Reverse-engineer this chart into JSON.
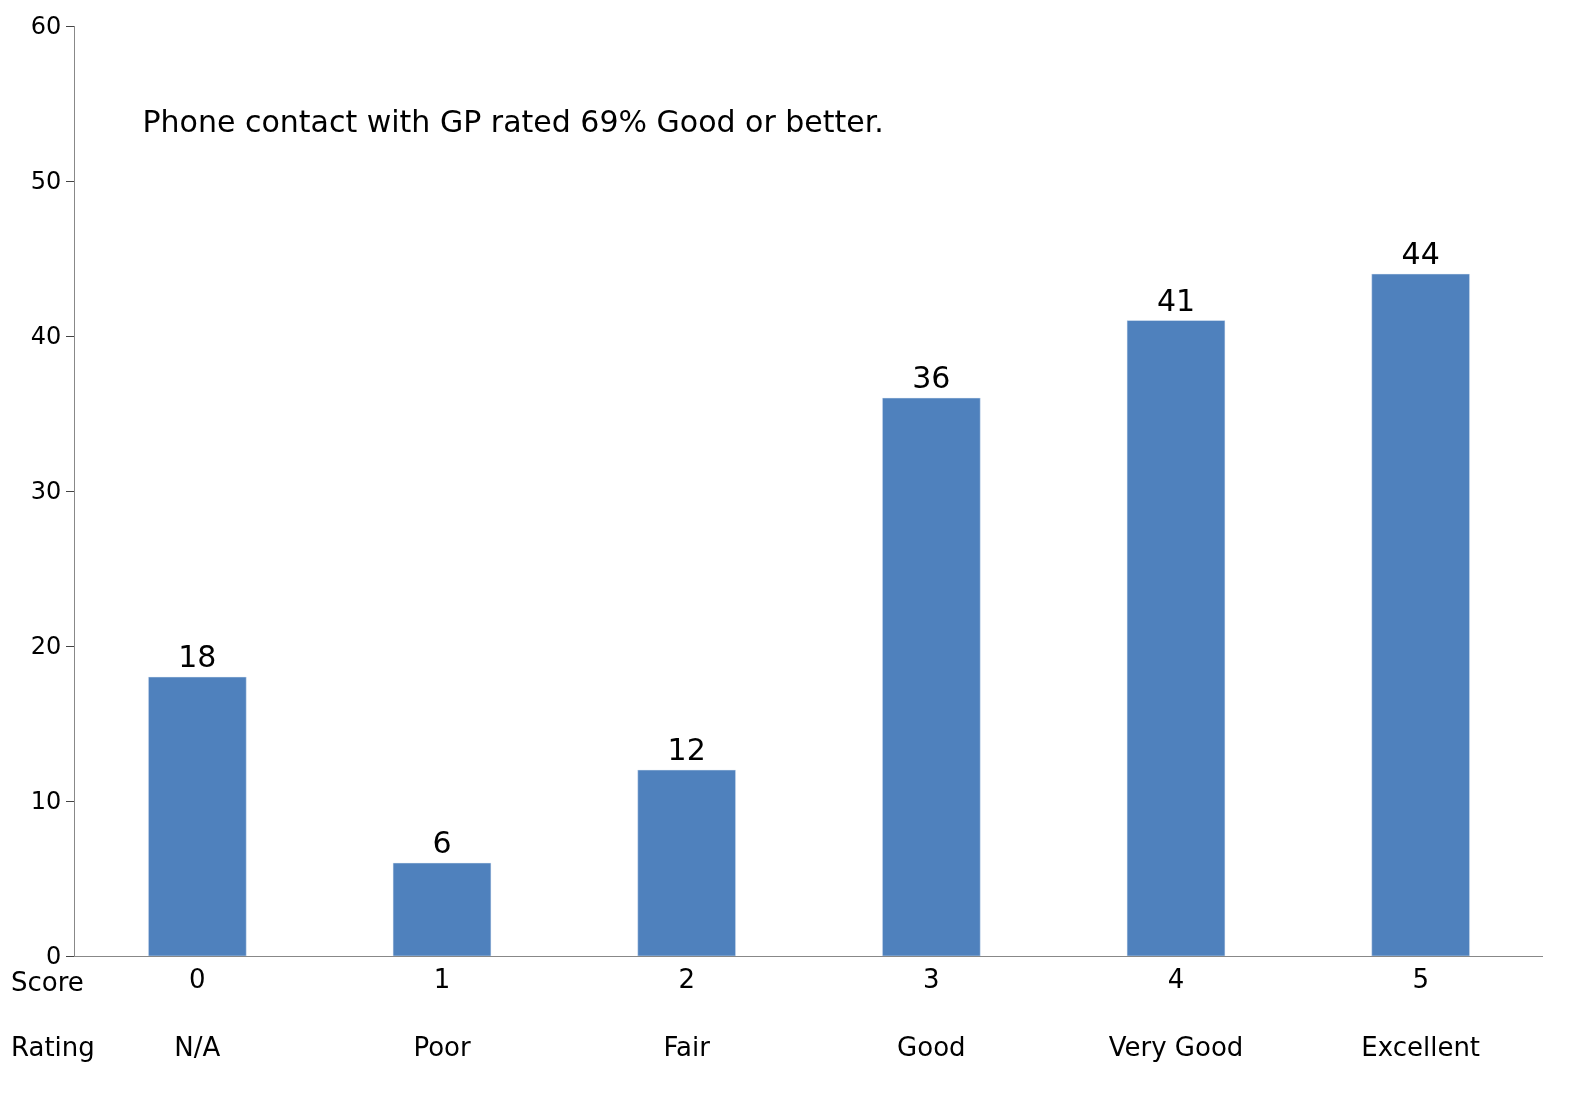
{
  "chart_data": {
    "type": "bar",
    "title": "Phone contact with GP rated 69% Good or better.",
    "categories": [
      "0\nN/A",
      "1\nPoor",
      "2\nFair",
      "3\nGood",
      "4\nVery Good",
      "5\nExcellent"
    ],
    "values": [
      18,
      6,
      12,
      36,
      41,
      44
    ],
    "color": "#4f81bd",
    "ylim": [
      0,
      60
    ],
    "yticks": [
      0,
      10,
      20,
      30,
      40,
      50,
      60
    ],
    "data_labels": true,
    "annotations": [
      "Score",
      "Rating"
    ]
  }
}
